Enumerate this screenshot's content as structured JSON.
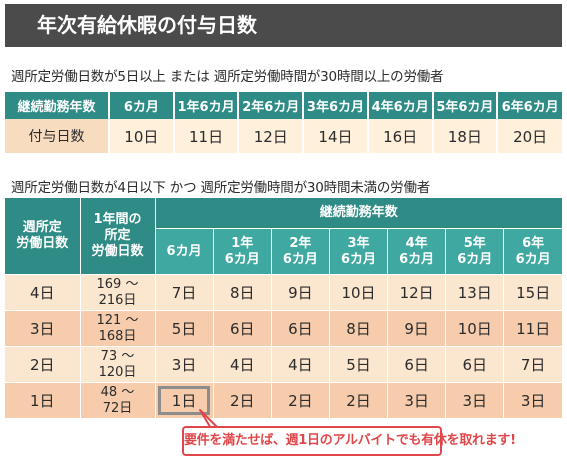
{
  "title": "年次有給休暇の付与日数",
  "section1": {
    "caption": "週所定労働日数が5日以上 または 週所定労働時間が30時間以上の労働者",
    "header_label": "継続勤務年数",
    "periods": [
      "6カ月",
      "1年6カ月",
      "2年6カ月",
      "3年6カ月",
      "4年6カ月",
      "5年6カ月",
      "6年6カ月"
    ],
    "row_label": "付与日数",
    "values": [
      "10日",
      "11日",
      "12日",
      "14日",
      "16日",
      "18日",
      "20日"
    ]
  },
  "section2": {
    "caption": "週所定労働日数が4日以下 かつ 週所定労働時間が30時間未満の労働者",
    "col1_header": [
      "週所定",
      "労働日数"
    ],
    "col2_header": [
      "1年間の",
      "所定",
      "労働日数"
    ],
    "span_header": "継続勤務年数",
    "periods": [
      [
        "6カ月"
      ],
      [
        "1年",
        "6カ月"
      ],
      [
        "2年",
        "6カ月"
      ],
      [
        "3年",
        "6カ月"
      ],
      [
        "4年",
        "6カ月"
      ],
      [
        "5年",
        "6カ月"
      ],
      [
        "6年",
        "6カ月"
      ]
    ],
    "rows": [
      {
        "days": "4日",
        "range": [
          "169 ～",
          "216日"
        ],
        "values": [
          "7日",
          "8日",
          "9日",
          "10日",
          "12日",
          "13日",
          "15日"
        ]
      },
      {
        "days": "3日",
        "range": [
          "121 ～",
          "168日"
        ],
        "values": [
          "5日",
          "6日",
          "6日",
          "8日",
          "9日",
          "10日",
          "11日"
        ]
      },
      {
        "days": "2日",
        "range": [
          "73 ～",
          "120日"
        ],
        "values": [
          "3日",
          "4日",
          "4日",
          "5日",
          "6日",
          "6日",
          "7日"
        ]
      },
      {
        "days": "1日",
        "range": [
          "48 ～",
          "72日"
        ],
        "values": [
          "1日",
          "2日",
          "2日",
          "2日",
          "3日",
          "3日",
          "3日"
        ]
      }
    ]
  },
  "callout": "要件を満たせば、週1日のアルバイトでも有休を取れます!",
  "colors": {
    "title_bg": "#4b4b4b",
    "header_teal": "#2e8b85",
    "header_teal_light": "#3fa8a0",
    "row_light": "#fbe6cf",
    "row_dark": "#f6ccad",
    "callout_red": "#e0474a"
  }
}
